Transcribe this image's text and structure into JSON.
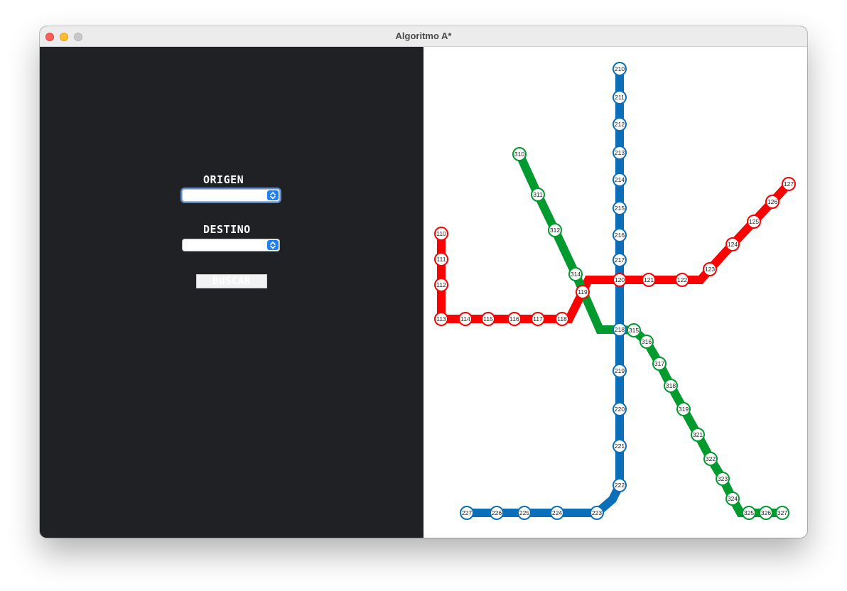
{
  "window": {
    "title": "Algoritmo A*"
  },
  "form": {
    "origin_label": "ORIGEN",
    "origin_value": "",
    "destination_label": "DESTINO",
    "destination_value": "",
    "search_button": "BUSCAR"
  },
  "map": {
    "lines": [
      {
        "id": "red",
        "color": "#ff0000",
        "stations": [
          "110",
          "111",
          "112",
          "113",
          "114",
          "115",
          "116",
          "117",
          "118",
          "119",
          "120",
          "121",
          "122",
          "123",
          "124",
          "125",
          "126",
          "127"
        ]
      },
      {
        "id": "blue",
        "color": "#0a6fb8",
        "stations": [
          "210",
          "211",
          "212",
          "213",
          "214",
          "215",
          "216",
          "217",
          "120",
          "218",
          "219",
          "220",
          "221",
          "222",
          "223",
          "224",
          "225",
          "226",
          "227"
        ]
      },
      {
        "id": "green",
        "color": "#009a2e",
        "stations": [
          "310",
          "311",
          "312",
          "314",
          "218",
          "315",
          "316",
          "317",
          "318",
          "319",
          "321",
          "322",
          "323",
          "324",
          "325",
          "326",
          "327"
        ]
      }
    ]
  }
}
